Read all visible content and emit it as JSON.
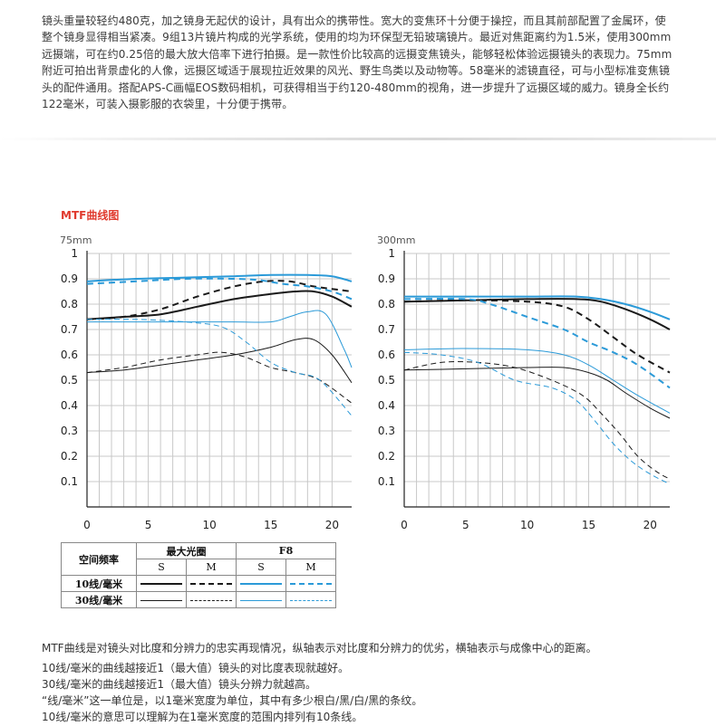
{
  "intro_text": "镜头重量较轻约480克，加之镜身无起伏的设计，具有出众的携带性。宽大的变焦环十分便于操控，而且其前部配置了金属环，使整个镜身显得相当紧凑。9组13片镜片构成的光学系统，使用的均为环保型无铅玻璃镜片。最近对焦距离约为1.5米，使用300mm远摄端，可在约0.25倍的最大放大倍率下进行拍摄。是一款性价比较高的远摄变焦镜头，能够轻松体验远摄镜头的表现力。75mm附近可拍出背景虚化的人像，远摄区域适于展现拉近效果的风光、野生鸟类以及动物等。58毫米的滤镜直径，可与小型标准变焦镜头的配件通用。搭配APS-C画幅EOS数码相机，可获得相当于约120-480mm的视角，进一步提升了远摄区域的威力。镜身全长约122毫米，可装入摄影服的衣袋里，十分便于携带。",
  "section_title": "MTF曲线图",
  "colors": {
    "black": "#1a1a1a",
    "blue": "#2b9ad8",
    "title_red": "#e03a2e"
  },
  "chart_data": [
    {
      "type": "line",
      "label": "75mm",
      "xlim": [
        0,
        21.6
      ],
      "ylim": [
        0,
        1
      ],
      "xticks": [
        0,
        5,
        10,
        15,
        20
      ],
      "yticks": [
        0.1,
        0.2,
        0.3,
        0.4,
        0.5,
        0.6,
        0.7,
        0.8,
        0.9,
        1
      ],
      "grid": true,
      "series": [
        {
          "name": "最大光圈 S 10线/毫米",
          "color": "black",
          "width": 2,
          "dash": false,
          "x": [
            0,
            3,
            6,
            9,
            12,
            15,
            17,
            18.5,
            20,
            21.6
          ],
          "y": [
            0.74,
            0.75,
            0.76,
            0.79,
            0.82,
            0.84,
            0.85,
            0.85,
            0.83,
            0.79
          ]
        },
        {
          "name": "最大光圈 M 10线/毫米",
          "color": "black",
          "width": 2,
          "dash": true,
          "x": [
            0,
            3,
            6,
            9,
            12,
            14.5,
            16.5,
            18.5,
            20,
            21.6
          ],
          "y": [
            0.74,
            0.75,
            0.78,
            0.83,
            0.87,
            0.89,
            0.89,
            0.87,
            0.86,
            0.85
          ]
        },
        {
          "name": "F8 S 10线/毫米",
          "color": "blue",
          "width": 2,
          "dash": false,
          "x": [
            0,
            4,
            8,
            12,
            15,
            18,
            20,
            21.6
          ],
          "y": [
            0.89,
            0.9,
            0.905,
            0.91,
            0.915,
            0.915,
            0.91,
            0.89
          ]
        },
        {
          "name": "F8 M 10线/毫米",
          "color": "blue",
          "width": 2,
          "dash": true,
          "x": [
            0,
            4,
            8,
            12,
            14,
            16,
            18,
            20,
            21.6
          ],
          "y": [
            0.88,
            0.89,
            0.9,
            0.9,
            0.895,
            0.88,
            0.87,
            0.85,
            0.82
          ]
        },
        {
          "name": "最大光圈 S 30线/毫米",
          "color": "black",
          "width": 1,
          "dash": false,
          "x": [
            0,
            3,
            6,
            9,
            12,
            15,
            17,
            18.5,
            20,
            21.6
          ],
          "y": [
            0.53,
            0.54,
            0.56,
            0.58,
            0.6,
            0.63,
            0.66,
            0.66,
            0.6,
            0.49
          ]
        },
        {
          "name": "最大光圈 M 30线/毫米",
          "color": "black",
          "width": 1,
          "dash": true,
          "x": [
            0,
            3,
            6,
            9,
            11,
            13,
            15,
            17,
            19,
            21.6
          ],
          "y": [
            0.53,
            0.55,
            0.58,
            0.6,
            0.61,
            0.59,
            0.55,
            0.53,
            0.5,
            0.41
          ]
        },
        {
          "name": "F8 S 30线/毫米",
          "color": "blue",
          "width": 1,
          "dash": false,
          "x": [
            0,
            4,
            8,
            12,
            15,
            16.5,
            18,
            19.5,
            21,
            21.6
          ],
          "y": [
            0.73,
            0.73,
            0.73,
            0.73,
            0.73,
            0.75,
            0.77,
            0.76,
            0.62,
            0.55
          ]
        },
        {
          "name": "F8 M 30线/毫米",
          "color": "blue",
          "width": 1,
          "dash": true,
          "x": [
            0,
            4,
            8,
            11,
            13,
            15,
            17,
            19,
            21.6
          ],
          "y": [
            0.74,
            0.74,
            0.73,
            0.71,
            0.65,
            0.57,
            0.53,
            0.5,
            0.36
          ]
        }
      ]
    },
    {
      "type": "line",
      "label": "300mm",
      "xlim": [
        0,
        21.6
      ],
      "ylim": [
        0,
        1
      ],
      "xticks": [
        0,
        5,
        10,
        15,
        20
      ],
      "yticks": [
        0.1,
        0.2,
        0.3,
        0.4,
        0.5,
        0.6,
        0.7,
        0.8,
        0.9,
        1
      ],
      "grid": true,
      "series": [
        {
          "name": "最大光圈 S 10线/毫米",
          "color": "black",
          "width": 2,
          "dash": false,
          "x": [
            0,
            5,
            10,
            14,
            16,
            18,
            20,
            21.6
          ],
          "y": [
            0.81,
            0.815,
            0.82,
            0.82,
            0.81,
            0.78,
            0.74,
            0.7
          ]
        },
        {
          "name": "最大光圈 M 10线/毫米",
          "color": "black",
          "width": 2,
          "dash": true,
          "x": [
            0,
            5,
            10,
            13,
            15,
            17,
            19,
            21.6
          ],
          "y": [
            0.81,
            0.815,
            0.81,
            0.79,
            0.74,
            0.67,
            0.6,
            0.53
          ]
        },
        {
          "name": "F8 S 10线/毫米",
          "color": "blue",
          "width": 2,
          "dash": false,
          "x": [
            0,
            5,
            10,
            14,
            16,
            18,
            20,
            21.6
          ],
          "y": [
            0.83,
            0.83,
            0.83,
            0.83,
            0.82,
            0.8,
            0.77,
            0.74
          ]
        },
        {
          "name": "F8 M 10线/毫米",
          "color": "blue",
          "width": 2,
          "dash": true,
          "x": [
            0,
            5,
            7,
            10,
            13,
            15,
            17,
            19,
            21.6
          ],
          "y": [
            0.82,
            0.82,
            0.8,
            0.75,
            0.7,
            0.65,
            0.61,
            0.56,
            0.47
          ]
        },
        {
          "name": "最大光圈 S 30线/毫米",
          "color": "black",
          "width": 1,
          "dash": false,
          "x": [
            0,
            5,
            10,
            13,
            15,
            16.5,
            18,
            20,
            21.6
          ],
          "y": [
            0.54,
            0.545,
            0.55,
            0.55,
            0.53,
            0.5,
            0.45,
            0.39,
            0.35
          ]
        },
        {
          "name": "最大光圈 M 30线/毫米",
          "color": "black",
          "width": 1,
          "dash": true,
          "x": [
            0,
            3,
            6,
            9,
            12,
            14.5,
            16,
            17.5,
            19,
            20.5,
            21.6
          ],
          "y": [
            0.54,
            0.57,
            0.57,
            0.55,
            0.5,
            0.44,
            0.37,
            0.29,
            0.2,
            0.14,
            0.11
          ]
        },
        {
          "name": "F8 S 30线/毫米",
          "color": "blue",
          "width": 1,
          "dash": false,
          "x": [
            0,
            5,
            10,
            13,
            15,
            17,
            19,
            21.6
          ],
          "y": [
            0.62,
            0.625,
            0.62,
            0.6,
            0.56,
            0.5,
            0.44,
            0.37
          ]
        },
        {
          "name": "F8 M 30线/毫米",
          "color": "blue",
          "width": 1,
          "dash": true,
          "x": [
            0,
            3,
            6,
            9,
            12,
            14,
            15.5,
            17,
            18.5,
            20,
            21.6
          ],
          "y": [
            0.61,
            0.6,
            0.57,
            0.5,
            0.47,
            0.42,
            0.34,
            0.25,
            0.18,
            0.13,
            0.09
          ]
        }
      ]
    }
  ],
  "legend": {
    "row_header": "空间频率",
    "max_aperture": "最大光圈",
    "f8": "F8",
    "s": "S",
    "m": "M",
    "lpmm10": "10线/毫米",
    "lpmm30": "30线/毫米"
  },
  "notes": {
    "line1": "MTF曲线是对镜头对比度和分辨力的忠实再现情况，纵轴表示对比度和分辨力的优劣，横轴表示与成像中心的距离。",
    "line2": "10线/毫米的曲线越接近1（最大值）镜头的对比度表现就越好。",
    "line3": "30线/毫米的曲线越接近1（最大值）镜头分辨力就越高。",
    "line4": "“线/毫米”这一单位是，以1毫米宽度为单位，其中有多少根白/黑/白/黑的条纹。",
    "line5": "10线/毫米的意思可以理解为在1毫米宽度的范围内排列有10条线。"
  }
}
